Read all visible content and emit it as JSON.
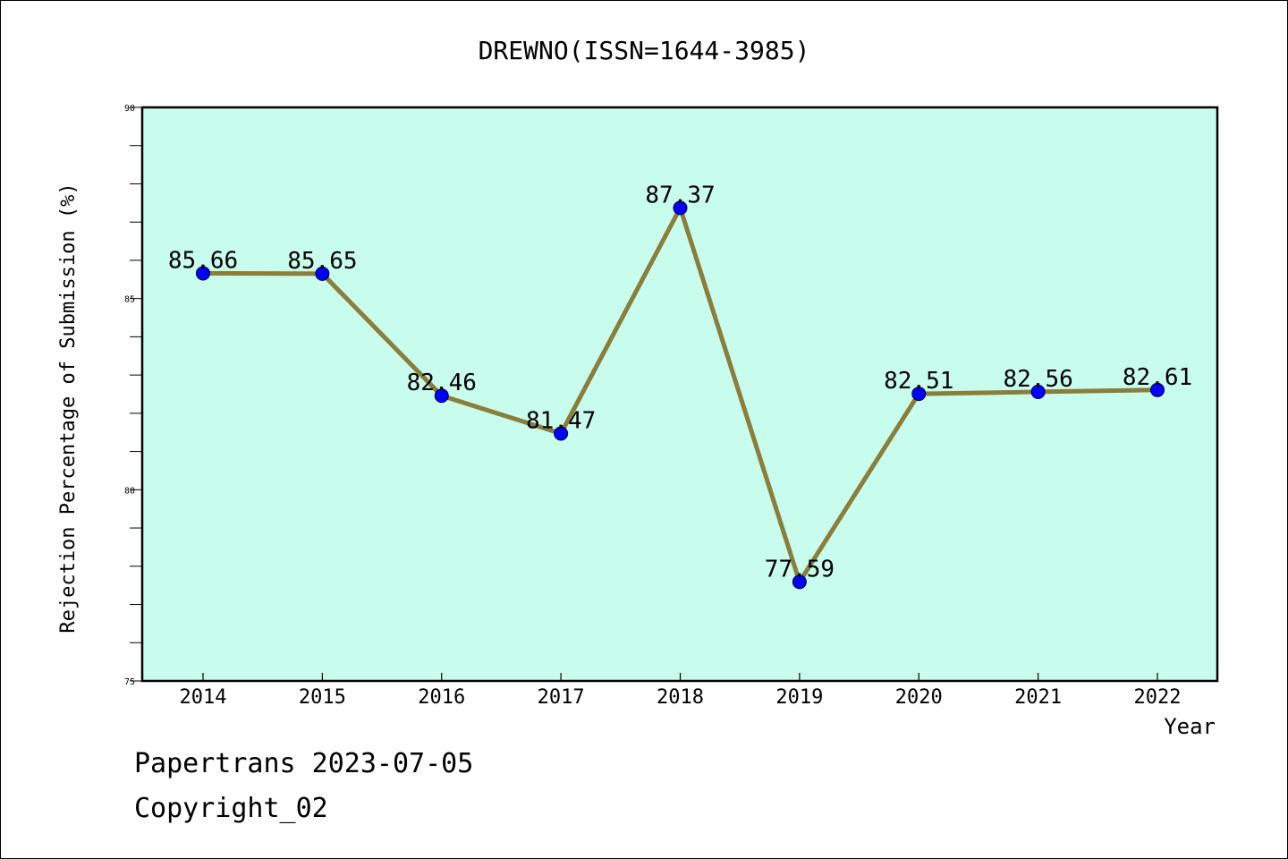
{
  "chart_data": {
    "type": "line",
    "title": "DREWNO(ISSN=1644-3985)",
    "xlabel": "Year",
    "ylabel": "Rejection Percentage of Submission (%)",
    "categories": [
      "2014",
      "2015",
      "2016",
      "2017",
      "2018",
      "2019",
      "2020",
      "2021",
      "2022"
    ],
    "values": [
      85.66,
      85.65,
      82.46,
      81.47,
      87.37,
      77.59,
      82.51,
      82.56,
      82.61
    ],
    "value_labels": [
      "85.66",
      "85.65",
      "82.46",
      "81.47",
      "87.37",
      "77.59",
      "82.51",
      "82.56",
      "82.61"
    ],
    "ylim": [
      75,
      90
    ],
    "yticks": [
      75,
      80,
      85,
      90
    ],
    "ytick_labels": [
      "75",
      "80",
      "85",
      "90"
    ],
    "grid": false,
    "legend": "none",
    "plot_background": "#c8fcec",
    "line_color": "#8b7d3a",
    "marker_color": "#0000ff"
  },
  "footer": {
    "line1": "Papertrans 2023-07-05",
    "line2": "Copyright_02"
  }
}
